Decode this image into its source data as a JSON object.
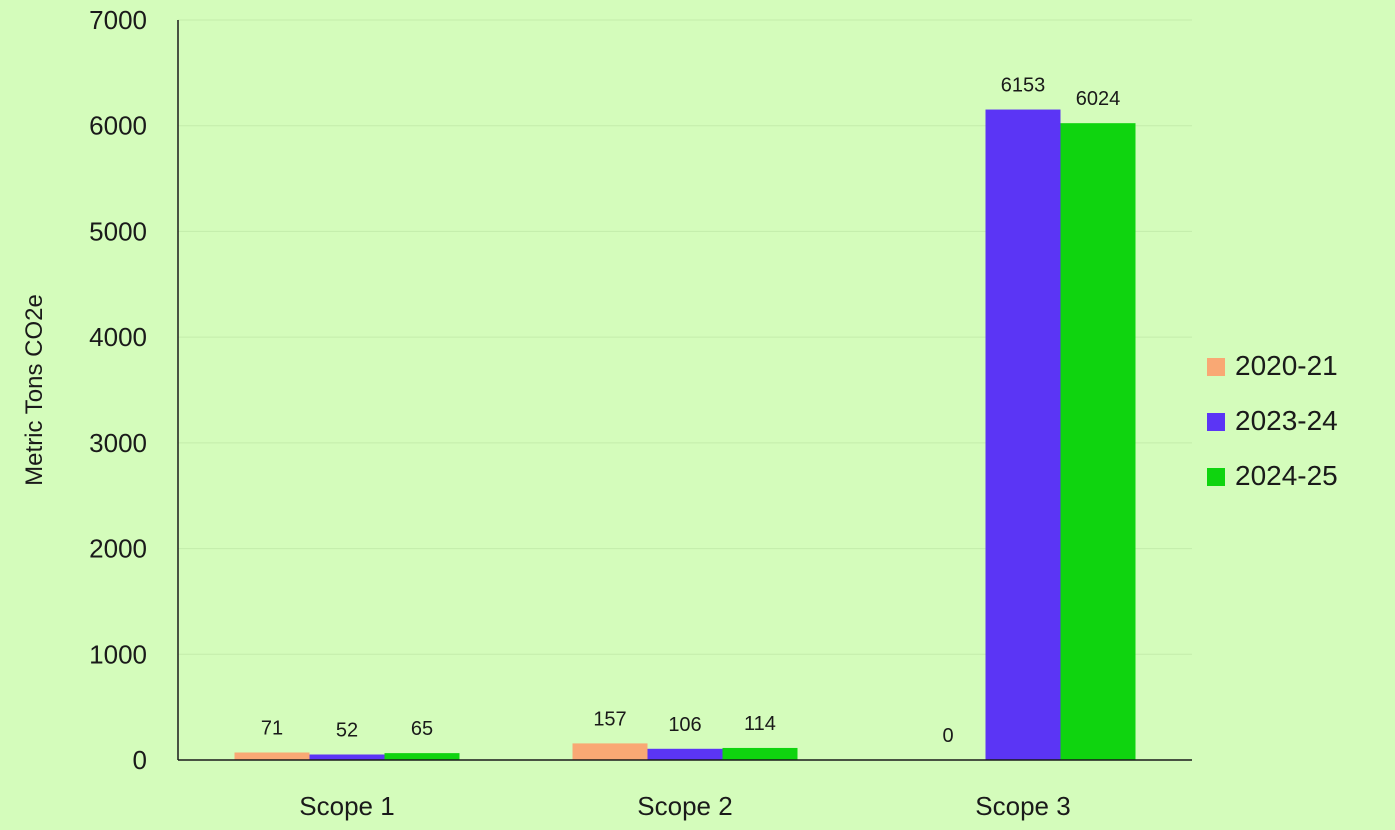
{
  "chart_data": {
    "type": "bar",
    "categories": [
      "Scope 1",
      "Scope 2",
      "Scope 3"
    ],
    "series": [
      {
        "name": "2020-21",
        "color": "#f9a874",
        "values": [
          71,
          157,
          0
        ]
      },
      {
        "name": "2023-24",
        "color": "#5b35f5",
        "values": [
          52,
          106,
          6153
        ]
      },
      {
        "name": "2024-25",
        "color": "#0fd40f",
        "values": [
          65,
          114,
          6024
        ]
      }
    ],
    "data_labels": [
      [
        "71",
        "157",
        "0"
      ],
      [
        "52",
        "106",
        "6153"
      ],
      [
        "65",
        "114",
        "6024"
      ]
    ],
    "ylabel": "Metric Tons CO2e",
    "ylim": [
      0,
      7000
    ],
    "yticks": [
      0,
      1000,
      2000,
      3000,
      4000,
      5000,
      6000,
      7000
    ],
    "grid": true,
    "legend_position": "right"
  },
  "colors": {
    "background": "#d4fcbb",
    "gridline": "#c3ecab",
    "axis": "#1a1a1a"
  }
}
